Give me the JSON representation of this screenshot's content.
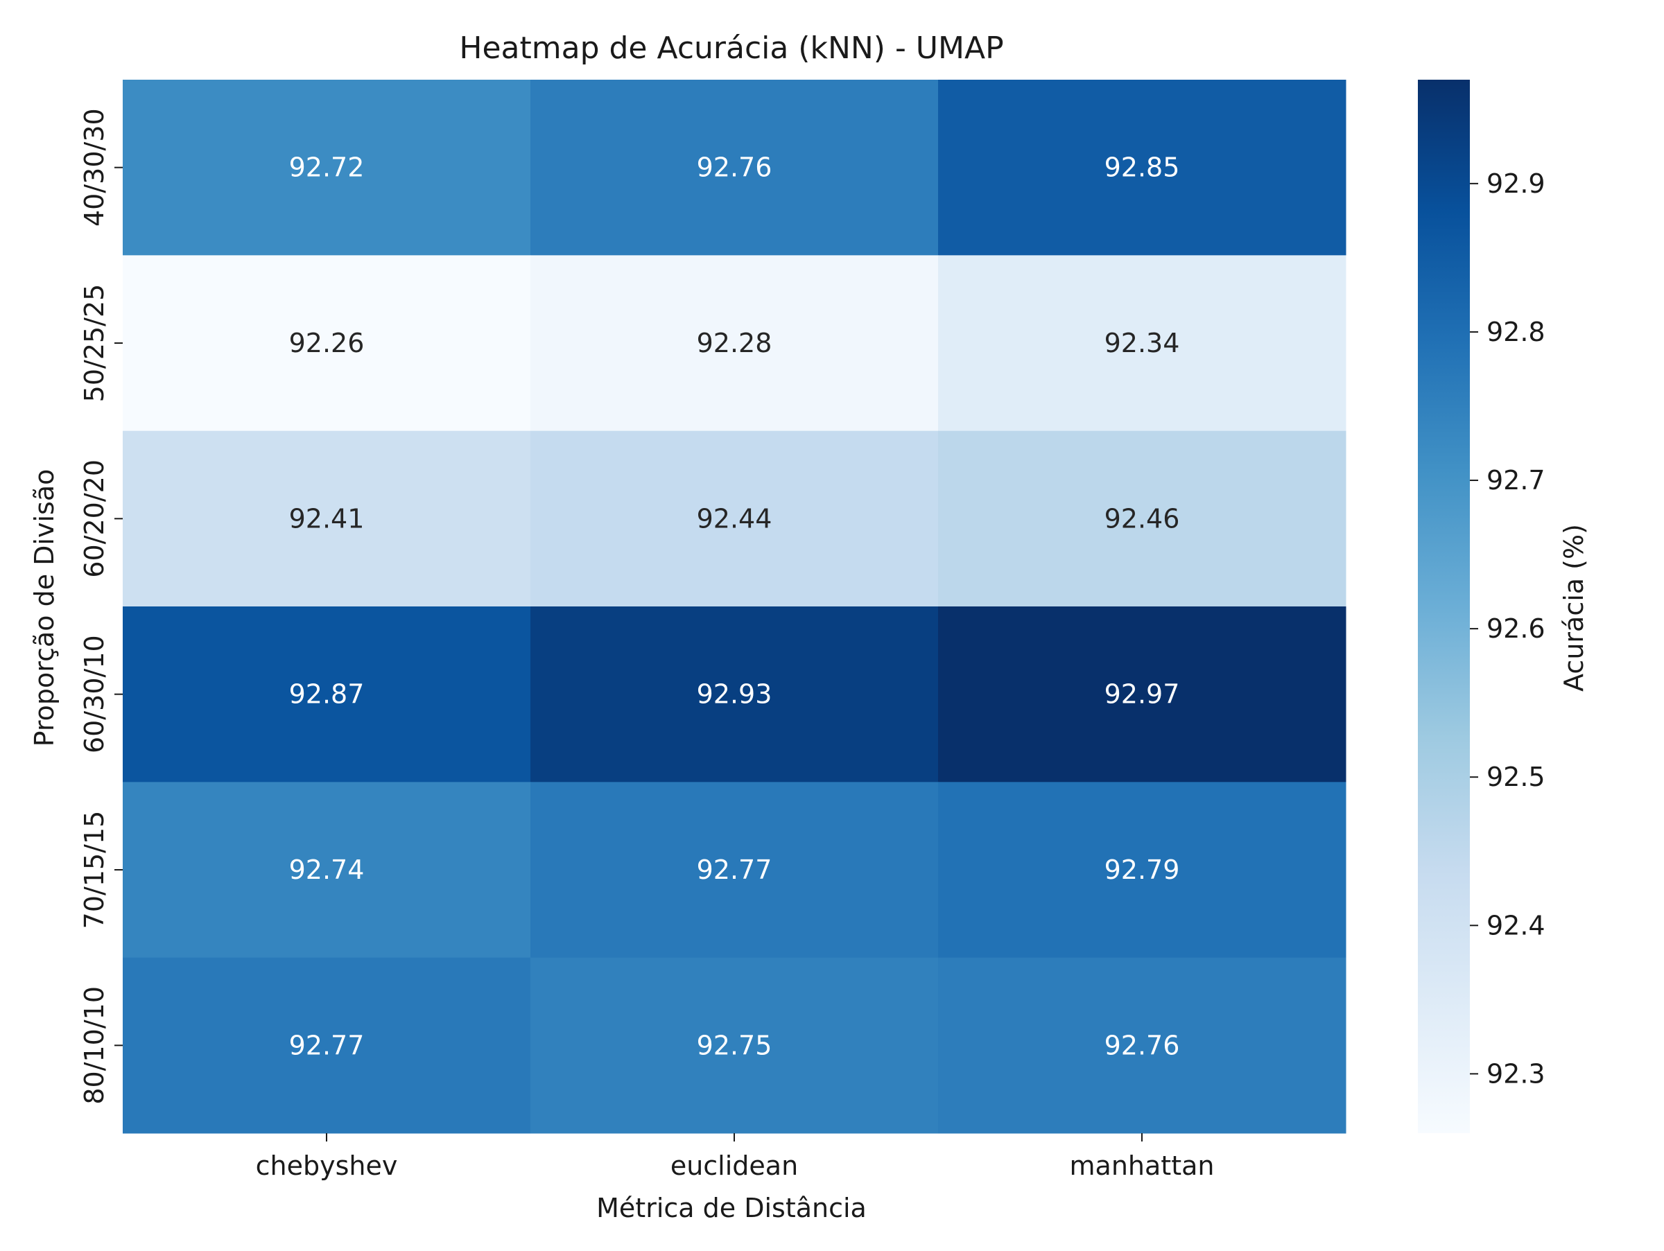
{
  "chart_data": {
    "type": "heatmap",
    "title": "Heatmap de Acurácia (kNN) - UMAP",
    "xlabel": "Métrica de Distância",
    "ylabel": "Proporção de Divisão",
    "x_categories": [
      "chebyshev",
      "euclidean",
      "manhattan"
    ],
    "y_categories": [
      "40/30/30",
      "50/25/25",
      "60/20/20",
      "60/30/10",
      "70/15/15",
      "80/10/10"
    ],
    "values": [
      [
        92.72,
        92.76,
        92.85
      ],
      [
        92.26,
        92.28,
        92.34
      ],
      [
        92.41,
        92.44,
        92.46
      ],
      [
        92.87,
        92.93,
        92.97
      ],
      [
        92.74,
        92.77,
        92.79
      ],
      [
        92.77,
        92.75,
        92.76
      ]
    ],
    "value_labels": [
      [
        "92.72",
        "92.76",
        "92.85"
      ],
      [
        "92.26",
        "92.28",
        "92.34"
      ],
      [
        "92.41",
        "92.44",
        "92.46"
      ],
      [
        "92.87",
        "92.93",
        "92.97"
      ],
      [
        "92.74",
        "92.77",
        "92.79"
      ],
      [
        "92.77",
        "92.75",
        "92.76"
      ]
    ],
    "colorbar": {
      "label": "Acurácia (%)",
      "range": [
        92.26,
        92.97
      ],
      "ticks": [
        92.3,
        92.4,
        92.5,
        92.6,
        92.7,
        92.8,
        92.9
      ],
      "tick_labels": [
        "92.3",
        "92.4",
        "92.5",
        "92.6",
        "92.7",
        "92.8",
        "92.9"
      ]
    },
    "colormap": "Blues",
    "colormap_stops": [
      "#f7fbff",
      "#deebf7",
      "#c6dbef",
      "#9ecae1",
      "#6baed6",
      "#4292c6",
      "#2171b5",
      "#08519c",
      "#08306b"
    ],
    "text_colors": {
      "light": "#ffffff",
      "dark": "#262626"
    },
    "grid": false
  }
}
